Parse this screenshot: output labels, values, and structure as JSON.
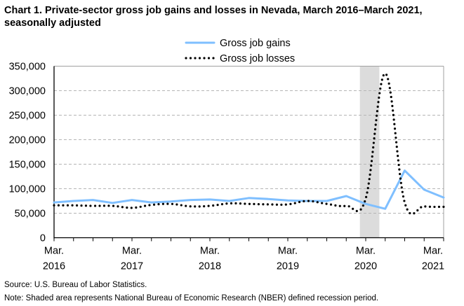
{
  "chart_data": {
    "type": "line",
    "title": "Chart 1. Private-sector gross job gains and losses in Nevada, March 2016–March 2021, seasonally adjusted",
    "xlabel": "",
    "ylabel": "",
    "ylim": [
      0,
      350000
    ],
    "yticks": [
      "0",
      "50,000",
      "100,000",
      "150,000",
      "200,000",
      "250,000",
      "300,000",
      "350,000"
    ],
    "xtick_labels": [
      {
        "month": "Mar.",
        "year": "2016",
        "index": 0
      },
      {
        "month": "Mar.",
        "year": "2017",
        "index": 4
      },
      {
        "month": "Mar.",
        "year": "2018",
        "index": 8
      },
      {
        "month": "Mar.",
        "year": "2019",
        "index": 12
      },
      {
        "month": "Mar.",
        "year": "2020",
        "index": 16
      },
      {
        "month": "Mar.",
        "year": "2021",
        "index": 20
      }
    ],
    "x": [
      "Mar 2016",
      "Jun 2016",
      "Sep 2016",
      "Dec 2016",
      "Mar 2017",
      "Jun 2017",
      "Sep 2017",
      "Dec 2017",
      "Mar 2018",
      "Jun 2018",
      "Sep 2018",
      "Dec 2018",
      "Mar 2019",
      "Jun 2019",
      "Sep 2019",
      "Dec 2019",
      "Mar 2020",
      "Jun 2020",
      "Sep 2020",
      "Dec 2020",
      "Mar 2021"
    ],
    "series": [
      {
        "name": "Gross job gains",
        "color": "#7fbfff",
        "style": "solid",
        "values": [
          72000,
          75000,
          77000,
          71000,
          77000,
          72000,
          74000,
          77000,
          78000,
          75000,
          81000,
          79000,
          76000,
          75000,
          75000,
          85000,
          69000,
          59000,
          137000,
          98000,
          82000
        ]
      },
      {
        "name": "Gross job losses",
        "color": "#000000",
        "style": "dotted",
        "values": [
          66000,
          66000,
          65000,
          65000,
          61000,
          67000,
          69000,
          64000,
          65000,
          70000,
          69000,
          68000,
          68000,
          75000,
          69000,
          65000,
          80000,
          335000,
          72000,
          64000,
          63000
        ]
      }
    ],
    "recession_shading": {
      "start_index": 15.7,
      "end_index": 16.7,
      "color": "#dcdcdc"
    },
    "legend_position": "top-center",
    "grid": true
  },
  "notes": {
    "source": "Source: U.S. Bureau of Labor Statistics.",
    "note": "Note: Shaded area represents National Bureau of Economic Research (NBER) defined recession period."
  }
}
